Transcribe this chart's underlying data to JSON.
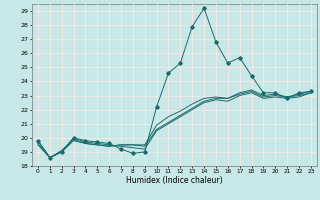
{
  "title": "",
  "xlabel": "Humidex (Indice chaleur)",
  "bg_color": "#c8e8e8",
  "line_color": "#1a6b6b",
  "xlim": [
    -0.5,
    23.5
  ],
  "ylim": [
    18,
    29.5
  ],
  "yticks": [
    18,
    19,
    20,
    21,
    22,
    23,
    24,
    25,
    26,
    27,
    28,
    29
  ],
  "xticks": [
    0,
    1,
    2,
    3,
    4,
    5,
    6,
    7,
    8,
    9,
    10,
    11,
    12,
    13,
    14,
    15,
    16,
    17,
    18,
    19,
    20,
    21,
    22,
    23
  ],
  "series": [
    {
      "x": [
        0,
        1,
        2,
        3,
        4,
        5,
        6,
        7,
        8,
        9,
        10,
        11,
        12,
        13,
        14,
        15,
        16,
        17,
        18,
        19,
        20,
        21,
        22,
        23
      ],
      "y": [
        19.8,
        18.6,
        19.0,
        20.0,
        19.8,
        19.7,
        19.6,
        19.2,
        18.9,
        19.0,
        22.2,
        24.6,
        25.3,
        27.9,
        29.2,
        26.8,
        25.3,
        25.7,
        24.4,
        23.2,
        23.2,
        22.8,
        23.2,
        23.3
      ],
      "marker": "D",
      "markersize": 1.8
    },
    {
      "x": [
        0,
        1,
        2,
        3,
        4,
        5,
        6,
        7,
        8,
        9,
        10,
        11,
        12,
        13,
        14,
        15,
        16,
        17,
        18,
        19,
        20,
        21,
        22,
        23
      ],
      "y": [
        19.8,
        18.6,
        19.1,
        19.9,
        19.6,
        19.5,
        19.4,
        19.5,
        19.5,
        19.5,
        20.9,
        21.5,
        21.9,
        22.4,
        22.8,
        22.9,
        22.8,
        23.2,
        23.4,
        23.0,
        23.1,
        22.9,
        23.1,
        23.3
      ],
      "marker": "none",
      "markersize": 0
    },
    {
      "x": [
        0,
        1,
        2,
        3,
        4,
        5,
        6,
        7,
        8,
        9,
        10,
        11,
        12,
        13,
        14,
        15,
        16,
        17,
        18,
        19,
        20,
        21,
        22,
        23
      ],
      "y": [
        19.5,
        18.6,
        19.0,
        20.0,
        19.7,
        19.6,
        19.5,
        19.4,
        19.3,
        19.2,
        20.5,
        21.0,
        21.5,
        22.0,
        22.5,
        22.7,
        22.6,
        23.0,
        23.2,
        22.8,
        22.9,
        22.8,
        22.9,
        23.2
      ],
      "marker": "none",
      "markersize": 0
    },
    {
      "x": [
        0,
        1,
        2,
        3,
        4,
        5,
        6,
        7,
        8,
        9,
        10,
        11,
        12,
        13,
        14,
        15,
        16,
        17,
        18,
        19,
        20,
        21,
        22,
        23
      ],
      "y": [
        19.6,
        18.6,
        19.0,
        19.8,
        19.6,
        19.5,
        19.4,
        19.5,
        19.5,
        19.4,
        20.6,
        21.1,
        21.6,
        22.1,
        22.6,
        22.8,
        22.8,
        23.1,
        23.3,
        22.9,
        23.0,
        22.9,
        23.0,
        23.2
      ],
      "marker": "none",
      "markersize": 0
    }
  ]
}
